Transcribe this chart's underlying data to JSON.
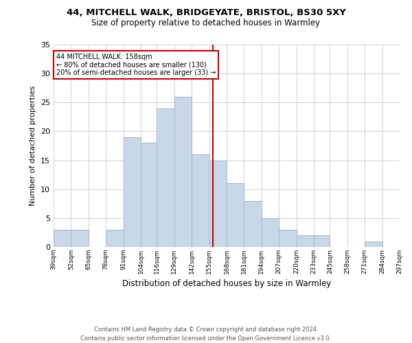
{
  "title": "44, MITCHELL WALK, BRIDGEYATE, BRISTOL, BS30 5XY",
  "subtitle": "Size of property relative to detached houses in Warmley",
  "xlabel": "Distribution of detached houses by size in Warmley",
  "ylabel": "Number of detached properties",
  "bar_edges": [
    39,
    52,
    65,
    78,
    91,
    104,
    116,
    129,
    142,
    155,
    168,
    181,
    194,
    207,
    220,
    233,
    245,
    258,
    271,
    284,
    297
  ],
  "bar_heights": [
    3,
    3,
    0,
    3,
    19,
    18,
    24,
    26,
    16,
    15,
    11,
    8,
    5,
    3,
    2,
    2,
    0,
    0,
    1,
    0
  ],
  "bar_color": "#c8d8e8",
  "bar_edge_color": "#a0b8cc",
  "property_size": 158,
  "vline_color": "#cc0000",
  "annotation_title": "44 MITCHELL WALK: 158sqm",
  "annotation_line1": "← 80% of detached houses are smaller (130)",
  "annotation_line2": "20% of semi-detached houses are larger (33) →",
  "annotation_box_color": "#cc0000",
  "ylim": [
    0,
    35
  ],
  "yticks": [
    0,
    5,
    10,
    15,
    20,
    25,
    30,
    35
  ],
  "tick_labels": [
    "39sqm",
    "52sqm",
    "65sqm",
    "78sqm",
    "91sqm",
    "104sqm",
    "116sqm",
    "129sqm",
    "142sqm",
    "155sqm",
    "168sqm",
    "181sqm",
    "194sqm",
    "207sqm",
    "220sqm",
    "233sqm",
    "245sqm",
    "258sqm",
    "271sqm",
    "284sqm",
    "297sqm"
  ],
  "footer_line1": "Contains HM Land Registry data © Crown copyright and database right 2024.",
  "footer_line2": "Contains public sector information licensed under the Open Government Licence v3.0.",
  "background_color": "#ffffff",
  "grid_color": "#d0d8e0"
}
